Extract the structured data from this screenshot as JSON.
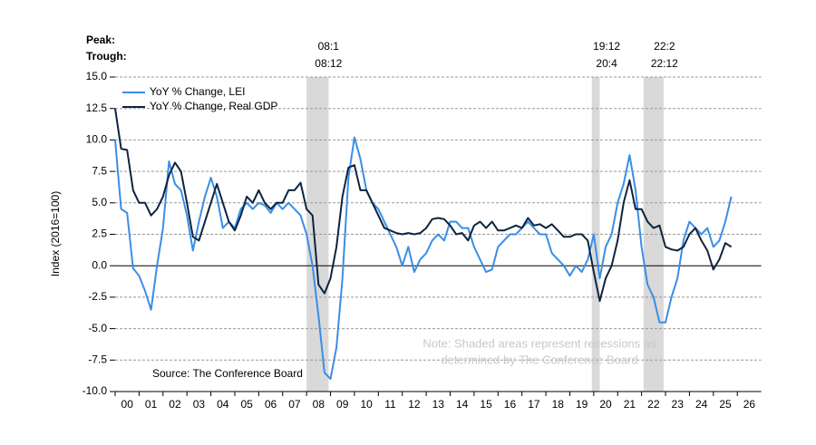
{
  "chart_data": {
    "type": "line",
    "peak_label": "Peak:",
    "trough_label": "Trough:",
    "y_label": "Index (2016=100)",
    "source": "Source: The Conference Board",
    "note": [
      "Note: Shaded areas represent recessions as",
      "determined by The Conference Board"
    ],
    "recessions": [
      {
        "peak": "08:1",
        "trough": "08:12",
        "start": 2008.0,
        "end": 2008.92
      },
      {
        "peak": "19:12",
        "trough": "20:4",
        "start": 2019.92,
        "end": 2020.25
      },
      {
        "peak": "22:2",
        "trough": "22:12",
        "start": 2022.08,
        "end": 2022.92
      }
    ],
    "xlim": [
      2000,
      2027
    ],
    "xticks": [
      {
        "value": 2000,
        "label": "00"
      },
      {
        "value": 2001,
        "label": "01"
      },
      {
        "value": 2002,
        "label": "02"
      },
      {
        "value": 2003,
        "label": "03"
      },
      {
        "value": 2004,
        "label": "04"
      },
      {
        "value": 2005,
        "label": "05"
      },
      {
        "value": 2006,
        "label": "06"
      },
      {
        "value": 2007,
        "label": "07"
      },
      {
        "value": 2008,
        "label": "08"
      },
      {
        "value": 2009,
        "label": "09"
      },
      {
        "value": 2010,
        "label": "10"
      },
      {
        "value": 2011,
        "label": "11"
      },
      {
        "value": 2012,
        "label": "12"
      },
      {
        "value": 2013,
        "label": "13"
      },
      {
        "value": 2014,
        "label": "14"
      },
      {
        "value": 2015,
        "label": "15"
      },
      {
        "value": 2016,
        "label": "16"
      },
      {
        "value": 2017,
        "label": "17"
      },
      {
        "value": 2018,
        "label": "18"
      },
      {
        "value": 2019,
        "label": "19"
      },
      {
        "value": 2020,
        "label": "20"
      },
      {
        "value": 2021,
        "label": "21"
      },
      {
        "value": 2022,
        "label": "22"
      },
      {
        "value": 2023,
        "label": "23"
      },
      {
        "value": 2024,
        "label": "24"
      },
      {
        "value": 2025,
        "label": "25"
      },
      {
        "value": 2026,
        "label": "26"
      }
    ],
    "ylim": [
      -10,
      15
    ],
    "yticks": [
      {
        "value": -10,
        "label": "-10.0"
      },
      -7.5,
      {
        "value": -5,
        "label": "-5.0"
      },
      -2.5,
      {
        "value": 0,
        "label": "0.0"
      },
      2.5,
      {
        "value": 5,
        "label": "5.0"
      },
      7.5,
      {
        "value": 10,
        "label": "10.0"
      },
      12.5,
      {
        "value": 15,
        "label": "15.0"
      }
    ],
    "grid": true,
    "x": [
      2000,
      2000.25,
      2000.5,
      2000.75,
      2001,
      2001.25,
      2001.5,
      2001.75,
      2002,
      2002.25,
      2002.5,
      2002.75,
      2003,
      2003.25,
      2003.5,
      2003.75,
      2004,
      2004.25,
      2004.5,
      2004.75,
      2005,
      2005.25,
      2005.5,
      2005.75,
      2006,
      2006.25,
      2006.5,
      2006.75,
      2007,
      2007.25,
      2007.5,
      2007.75,
      2008,
      2008.25,
      2008.5,
      2008.75,
      2009,
      2009.25,
      2009.5,
      2009.75,
      2010,
      2010.25,
      2010.5,
      2010.75,
      2011,
      2011.25,
      2011.5,
      2011.75,
      2012,
      2012.25,
      2012.5,
      2012.75,
      2013,
      2013.25,
      2013.5,
      2013.75,
      2014,
      2014.25,
      2014.5,
      2014.75,
      2015,
      2015.25,
      2015.5,
      2015.75,
      2016,
      2016.25,
      2016.5,
      2016.75,
      2017,
      2017.25,
      2017.5,
      2017.75,
      2018,
      2018.25,
      2018.5,
      2018.75,
      2019,
      2019.25,
      2019.5,
      2019.75,
      2020,
      2020.25,
      2020.5,
      2020.75,
      2021,
      2021.25,
      2021.5,
      2021.75,
      2022,
      2022.25,
      2022.5,
      2022.75,
      2023,
      2023.25,
      2023.5,
      2023.75,
      2024,
      2024.25,
      2024.5,
      2024.75,
      2025,
      2025.25,
      2025.5,
      2025.75
    ],
    "series": [
      {
        "name": "YoY % Change, LEI",
        "color": "#3a8ee6",
        "values": [
          10,
          4.5,
          4.2,
          -0.2,
          -0.8,
          -2.0,
          -3.5,
          0,
          3.0,
          8.3,
          6.5,
          6.0,
          4.0,
          1.2,
          3.5,
          5.5,
          7.0,
          5.5,
          3.0,
          3.5,
          3.0,
          4.5,
          5.0,
          4.5,
          5.0,
          4.8,
          4.2,
          5.0,
          4.5,
          5.0,
          4.5,
          4.0,
          2.5,
          0,
          -4,
          -8.5,
          -9.0,
          -6.5,
          -1,
          7,
          10.2,
          8.5,
          6.0,
          5.0,
          4.5,
          3.5,
          2.5,
          1.5,
          0.0,
          1.5,
          -0.5,
          0.5,
          1.0,
          2.0,
          2.5,
          2.0,
          3.5,
          3.5,
          3.0,
          3.0,
          1.5,
          0.5,
          -0.5,
          -0.3,
          1.5,
          2.0,
          2.5,
          2.5,
          3.0,
          3.5,
          3.0,
          2.5,
          2.5,
          1.0,
          0.5,
          0.0,
          -0.8,
          0.0,
          -0.5,
          0.5,
          2.5,
          -1.0,
          1.5,
          2.5,
          5.0,
          6.5,
          8.8,
          6.0,
          1.5,
          -1.5,
          -2.5,
          -4.5,
          -4.5,
          -2.5,
          -1.0,
          2.0,
          3.5,
          3.0,
          2.5,
          3.0,
          1.5,
          2.0,
          3.5,
          5.5
        ]
      },
      {
        "name": "YoY % Change, Real GDP",
        "color": "#0d2440",
        "values": [
          12.5,
          9.3,
          9.2,
          6.0,
          5.0,
          5.0,
          4.0,
          4.5,
          5.5,
          7.2,
          8.2,
          7.5,
          5.0,
          2.3,
          2.0,
          3.5,
          5.0,
          6.5,
          5.0,
          3.5,
          2.8,
          4.0,
          5.5,
          5.0,
          6.0,
          5.0,
          4.5,
          5.0,
          5.0,
          6.0,
          6.0,
          6.6,
          4.5,
          4.0,
          -1.5,
          -2.2,
          -1.0,
          1.5,
          5.5,
          7.8,
          8.0,
          6.0,
          6.0,
          5.0,
          4.0,
          3.0,
          2.8,
          2.6,
          2.5,
          2.6,
          2.5,
          2.6,
          3.0,
          3.7,
          3.8,
          3.7,
          3.2,
          2.5,
          2.6,
          2.0,
          3.2,
          3.5,
          3.0,
          3.5,
          2.8,
          2.8,
          3.0,
          3.2,
          3.0,
          3.8,
          3.2,
          3.3,
          3.0,
          3.3,
          2.8,
          2.3,
          2.3,
          2.5,
          2.5,
          2.0,
          -0.5,
          -2.8,
          -1.0,
          0.0,
          2.0,
          5.0,
          6.8,
          4.5,
          4.5,
          3.5,
          3.0,
          3.2,
          1.5,
          1.3,
          1.2,
          1.5,
          2.5,
          3.0,
          2.0,
          1.2,
          -0.3,
          0.5,
          1.8,
          1.5
        ]
      }
    ]
  }
}
